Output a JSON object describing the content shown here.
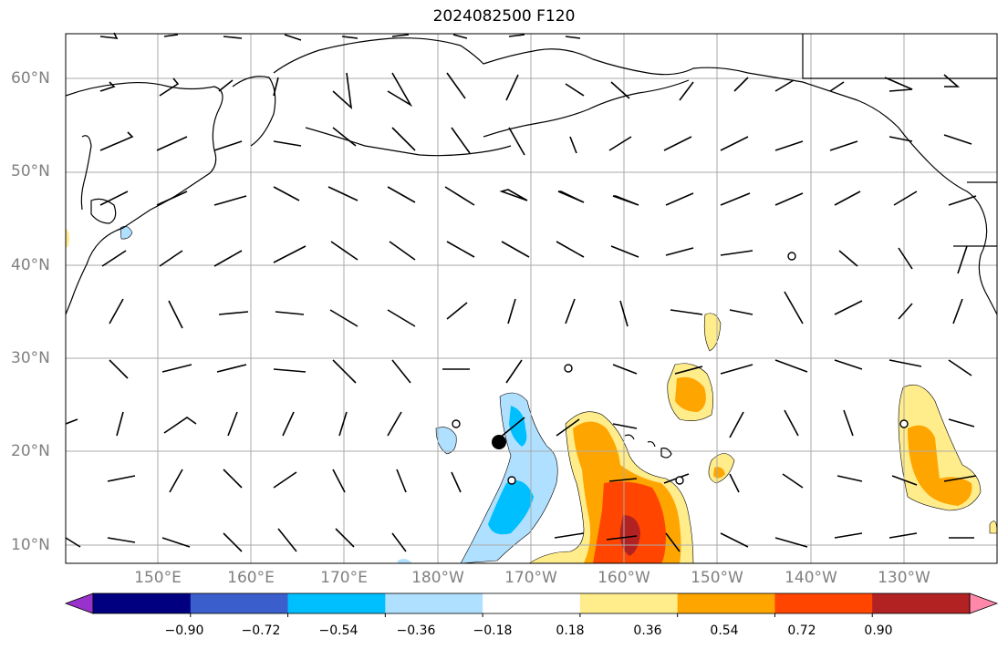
{
  "title": "2024082500 F120",
  "latitude_labels": [
    "60°N",
    "50°N",
    "40°N",
    "30°N",
    "20°N",
    "10°N"
  ],
  "longitude_labels": [
    "150°E",
    "160°E",
    "170°E",
    "180°W",
    "170°W",
    "160°W",
    "150°W",
    "140°W",
    "130°W"
  ],
  "colorbar": {
    "tick_labels": [
      "−0.90",
      "−0.72",
      "−0.54",
      "−0.36",
      "−0.18",
      "0.18",
      "0.36",
      "0.54",
      "0.72",
      "0.90"
    ],
    "colors": [
      "#9932cc",
      "#000080",
      "#3a5fcd",
      "#00bfff",
      "#b0e0ff",
      "#ffffff",
      "#ffec8b",
      "#ffa500",
      "#ff4500",
      "#b22222",
      "#ff88aa"
    ]
  },
  "colors": {
    "grid": "#aaaaaa",
    "coast": "#000000",
    "barb": "#000000"
  }
}
